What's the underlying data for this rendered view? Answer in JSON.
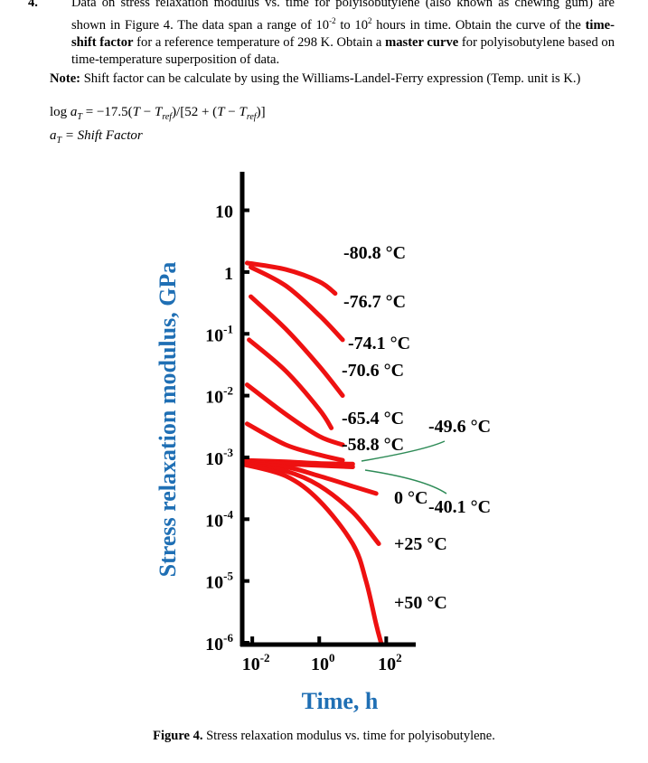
{
  "problem": {
    "number": "4.",
    "text_1": "Data on stress relaxation modulus vs. time for polyisobutylene (also known as chewing gum) are shown in Figure 4. The data span a range of 10",
    "sup_1": "-2",
    "text_2": " to 10",
    "sup_2": "2",
    "text_3": " hours in time. Obtain the curve of the ",
    "bold_1": "time-shift factor",
    "text_4": " for a reference temperature of 298 K. Obtain a ",
    "bold_2": "master curve",
    "text_5": " for polyisobutylene based on time-temperature superposition of data."
  },
  "note": {
    "label": "Note:",
    "text": " Shift factor can be calculate by using the Williams-Landel-Ferry expression (Temp. unit is K.)"
  },
  "formula": {
    "line1_prefix": "log ",
    "line1_expr": " = −17.5(T − T_ref)/[52 + (T − T_ref)]",
    "line2": "a_T = Shift Factor"
  },
  "chart_data": {
    "type": "line",
    "xlabel": "Time, h",
    "ylabel": "Stress relaxation modulus, GPa",
    "x_scale": "log",
    "y_scale": "log",
    "xlim": [
      0.005,
      300
    ],
    "ylim": [
      1e-06,
      20
    ],
    "x_ticks": [
      0.01,
      1,
      100
    ],
    "x_tick_labels": [
      {
        "base": "10",
        "exp": "-2"
      },
      {
        "base": "10",
        "exp": "0"
      },
      {
        "base": "10",
        "exp": "2"
      }
    ],
    "y_ticks": [
      1e-06,
      1e-05,
      0.0001,
      0.001,
      0.01,
      0.1,
      1,
      10
    ],
    "y_tick_labels": [
      {
        "base": "10",
        "exp": "-6"
      },
      {
        "base": "10",
        "exp": "-5"
      },
      {
        "base": "10",
        "exp": "-4"
      },
      {
        "base": "10",
        "exp": "-3"
      },
      {
        "base": "10",
        "exp": "-2"
      },
      {
        "base": "10",
        "exp": "-1"
      },
      {
        "base": "1",
        "exp": ""
      },
      {
        "base": "10",
        "exp": ""
      }
    ],
    "series": [
      {
        "name": "-80.8 °C",
        "x": [
          0.007,
          0.1,
          1,
          3
        ],
        "y": [
          1.4,
          1.1,
          0.7,
          0.45
        ]
      },
      {
        "name": "-76.7 °C",
        "x": [
          0.009,
          0.1,
          1,
          5
        ],
        "y": [
          1.2,
          0.6,
          0.2,
          0.08
        ]
      },
      {
        "name": "-74.1 °C",
        "x": [
          0.009,
          0.1,
          1,
          5
        ],
        "y": [
          0.4,
          0.12,
          0.03,
          0.01
        ]
      },
      {
        "name": "-70.6 °C",
        "x": [
          0.008,
          0.1,
          1,
          2.3
        ],
        "y": [
          0.08,
          0.025,
          0.006,
          0.003
        ]
      },
      {
        "name": "-65.4 °C",
        "x": [
          0.007,
          0.1,
          1,
          5
        ],
        "y": [
          0.015,
          0.005,
          0.0022,
          0.0016
        ]
      },
      {
        "name": "-58.8 °C",
        "x": [
          0.007,
          0.1,
          1,
          5
        ],
        "y": [
          0.0035,
          0.0016,
          0.0011,
          0.0009
        ]
      },
      {
        "name": "-49.6 °C",
        "x": [
          0.005,
          0.1,
          1,
          10
        ],
        "y": [
          0.0009,
          0.00085,
          0.0008,
          0.00078
        ]
      },
      {
        "name": "-40.1 °C",
        "x": [
          0.005,
          0.1,
          1,
          10
        ],
        "y": [
          0.00082,
          0.00078,
          0.00074,
          0.0007
        ]
      },
      {
        "name": "0 °C",
        "x": [
          0.005,
          0.1,
          1,
          10,
          50
        ],
        "y": [
          0.0008,
          0.0007,
          0.0005,
          0.00034,
          0.00026
        ]
      },
      {
        "name": "+25 °C",
        "x": [
          0.005,
          0.1,
          1,
          10,
          60
        ],
        "y": [
          0.0008,
          0.0006,
          0.00035,
          0.00013,
          4e-05
        ]
      },
      {
        "name": "+50 °C",
        "x": [
          0.005,
          0.1,
          1,
          10,
          25,
          50,
          70
        ],
        "y": [
          0.00078,
          0.0005,
          0.0002,
          4e-05,
          1e-05,
          2e-06,
          1e-06
        ]
      }
    ],
    "annotations": [
      {
        "text": "-80.8 °C"
      },
      {
        "text": "-76.7 °C"
      },
      {
        "text": "-74.1 °C"
      },
      {
        "text": "-70.6 °C"
      },
      {
        "text": "-65.4 °C"
      },
      {
        "text": "-58.8 °C"
      },
      {
        "text": "-49.6 °C"
      },
      {
        "text": "0 °C"
      },
      {
        "text": "-40.1 °C"
      },
      {
        "text": "+25 °C"
      },
      {
        "text": "+50 °C"
      }
    ],
    "colors": {
      "curve": "#ee1111",
      "leader": "#2e8b57",
      "axis_title": "#1f6fb4",
      "axis": "#000000"
    }
  },
  "caption": {
    "label": "Figure 4.",
    "text": " Stress relaxation modulus vs. time for polyisobutylene."
  }
}
